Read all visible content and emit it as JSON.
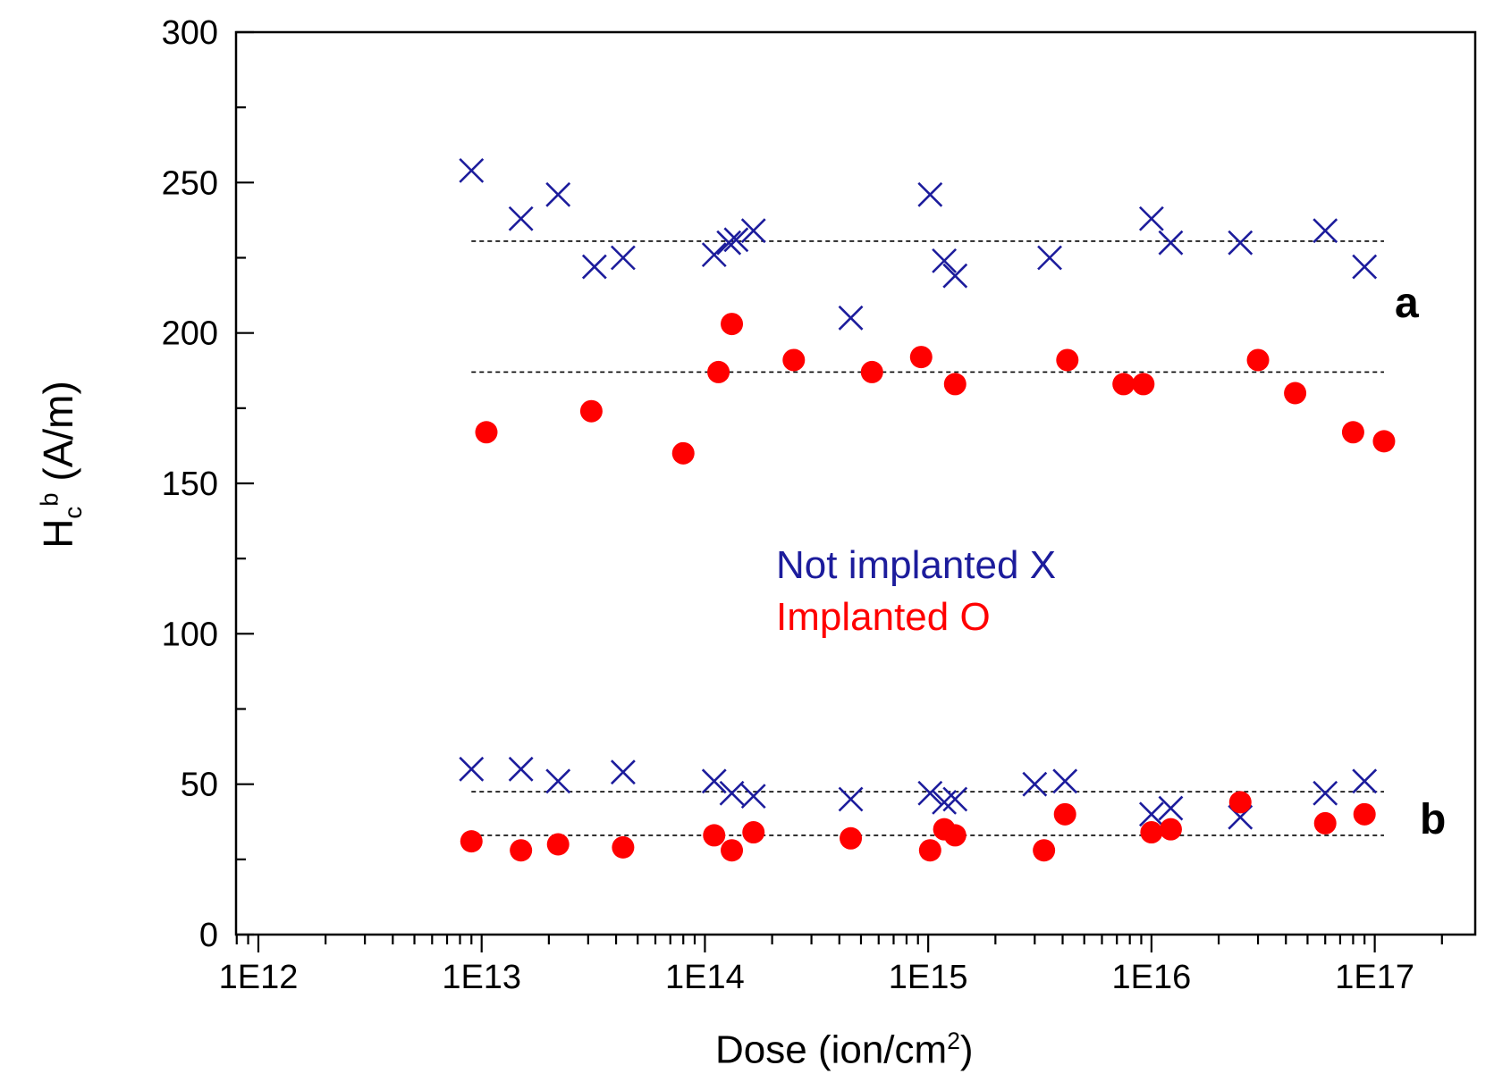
{
  "chart_data": {
    "type": "scatter",
    "title": "",
    "xlabel_prefix": "Dose (ion/cm",
    "xlabel_sup": "2",
    "xlabel_suffix": ")",
    "ylabel_base": "H",
    "ylabel_sub": "c",
    "ylabel_sup": "b",
    "ylabel_units": "(A/m)",
    "xscale": "log",
    "xlim_exp": [
      11.9,
      17.45
    ],
    "ylim": [
      0,
      300
    ],
    "x_ticks": [
      1000000000000.0,
      10000000000000.0,
      100000000000000.0,
      1000000000000000.0,
      1e+16,
      1e+17
    ],
    "x_tick_labels": [
      "1E12",
      "1E13",
      "1E14",
      "1E15",
      "1E16",
      "1E17"
    ],
    "y_ticks": [
      0,
      50,
      100,
      150,
      200,
      250,
      300
    ],
    "y_tick_labels": [
      "0",
      "50",
      "100",
      "150",
      "200",
      "250",
      "300"
    ],
    "colors": {
      "not_implanted": "#1c1c9c",
      "implanted": "#ff0000",
      "reference": "#000000"
    },
    "legend": [
      {
        "label": "Not implanted  X",
        "series": "not_implanted"
      },
      {
        "label": "Implanted  O",
        "series": "implanted"
      }
    ],
    "annotations": [
      {
        "text": "a",
        "series_group": "upper"
      },
      {
        "text": "b",
        "series_group": "lower"
      }
    ],
    "reference_lines": [
      {
        "name": "a-not-implanted-mean",
        "y": 230.5
      },
      {
        "name": "a-implanted-mean",
        "y": 187
      },
      {
        "name": "b-not-implanted-mean",
        "y": 47.5
      },
      {
        "name": "b-implanted-mean",
        "y": 33
      }
    ],
    "series": [
      {
        "name": "a-not-implanted",
        "marker": "x",
        "color_key": "not_implanted",
        "points": [
          [
            9000000000000.0,
            254
          ],
          [
            15000000000000.0,
            238
          ],
          [
            22000000000000.0,
            246
          ],
          [
            32000000000000.0,
            222
          ],
          [
            43000000000000.0,
            225
          ],
          [
            110000000000000.0,
            226
          ],
          [
            128000000000000.0,
            230
          ],
          [
            138000000000000.0,
            231
          ],
          [
            165000000000000.0,
            234
          ],
          [
            450000000000000.0,
            205
          ],
          [
            1020000000000000.0,
            246
          ],
          [
            1180000000000000.0,
            224
          ],
          [
            1320000000000000.0,
            219
          ],
          [
            3500000000000000.0,
            225
          ],
          [
            1e+16,
            238
          ],
          [
            1.22e+16,
            230
          ],
          [
            2.5e+16,
            230
          ],
          [
            6e+16,
            234
          ],
          [
            9e+16,
            222
          ]
        ]
      },
      {
        "name": "a-implanted",
        "marker": "o",
        "color_key": "implanted",
        "points": [
          [
            10500000000000.0,
            167
          ],
          [
            31000000000000.0,
            174
          ],
          [
            80000000000000.0,
            160
          ],
          [
            115000000000000.0,
            187
          ],
          [
            132000000000000.0,
            203
          ],
          [
            250000000000000.0,
            191
          ],
          [
            560000000000000.0,
            187
          ],
          [
            930000000000000.0,
            192
          ],
          [
            1320000000000000.0,
            183
          ],
          [
            4200000000000000.0,
            191
          ],
          [
            7500000000000000.0,
            183
          ],
          [
            9200000000000000.0,
            183
          ],
          [
            3e+16,
            191
          ],
          [
            4.4e+16,
            180
          ],
          [
            8e+16,
            167
          ],
          [
            1.1e+17,
            164
          ]
        ]
      },
      {
        "name": "b-not-implanted",
        "marker": "x",
        "color_key": "not_implanted",
        "points": [
          [
            9000000000000.0,
            55
          ],
          [
            15000000000000.0,
            55
          ],
          [
            22000000000000.0,
            51
          ],
          [
            43000000000000.0,
            54
          ],
          [
            110000000000000.0,
            51
          ],
          [
            132000000000000.0,
            47
          ],
          [
            165000000000000.0,
            46
          ],
          [
            450000000000000.0,
            45
          ],
          [
            1020000000000000.0,
            47
          ],
          [
            1180000000000000.0,
            44
          ],
          [
            1320000000000000.0,
            45
          ],
          [
            3000000000000000.0,
            50
          ],
          [
            4100000000000000.0,
            51
          ],
          [
            1e+16,
            40
          ],
          [
            1.22e+16,
            42
          ],
          [
            2.5e+16,
            39
          ],
          [
            6e+16,
            47
          ],
          [
            9e+16,
            51
          ]
        ]
      },
      {
        "name": "b-implanted",
        "marker": "o",
        "color_key": "implanted",
        "points": [
          [
            9000000000000.0,
            31
          ],
          [
            15000000000000.0,
            28
          ],
          [
            22000000000000.0,
            30
          ],
          [
            43000000000000.0,
            29
          ],
          [
            110000000000000.0,
            33
          ],
          [
            132000000000000.0,
            28
          ],
          [
            165000000000000.0,
            34
          ],
          [
            450000000000000.0,
            32
          ],
          [
            1020000000000000.0,
            28
          ],
          [
            1180000000000000.0,
            35
          ],
          [
            1320000000000000.0,
            33
          ],
          [
            3300000000000000.0,
            28
          ],
          [
            4100000000000000.0,
            40
          ],
          [
            1e+16,
            34
          ],
          [
            1.22e+16,
            35
          ],
          [
            2.5e+16,
            44
          ],
          [
            6e+16,
            37
          ],
          [
            9e+16,
            40
          ]
        ]
      }
    ]
  }
}
